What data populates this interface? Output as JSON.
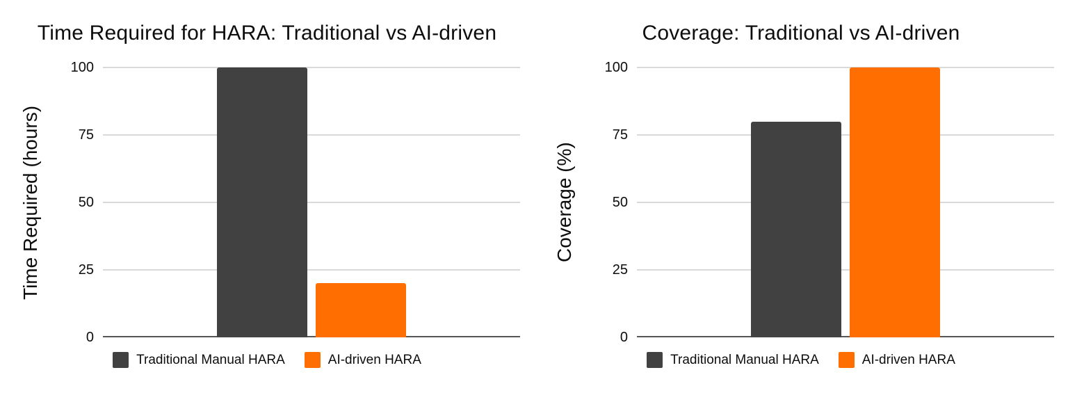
{
  "colors": {
    "background": "#ffffff",
    "gridline": "#d9d9d9",
    "axis_line": "#565656",
    "text": "#0d0d0d",
    "series_traditional": "#414141",
    "series_ai": "#ff6e01"
  },
  "chart_data": [
    {
      "type": "bar",
      "title": "Time Required for HARA: Traditional vs AI-driven",
      "ylabel": "Time Required (hours)",
      "xlabel": "",
      "ylim": [
        0,
        100
      ],
      "yticks": [
        0,
        25,
        50,
        75,
        100
      ],
      "grid": true,
      "legend_position": "bottom",
      "categories": [
        ""
      ],
      "series": [
        {
          "name": "Traditional Manual HARA",
          "color": "#414141",
          "values": [
            100
          ]
        },
        {
          "name": "AI-driven HARA",
          "color": "#ff6e01",
          "values": [
            20
          ]
        }
      ]
    },
    {
      "type": "bar",
      "title": "Coverage: Traditional vs AI-driven",
      "ylabel": "Coverage (%)",
      "xlabel": "",
      "ylim": [
        0,
        100
      ],
      "yticks": [
        0,
        25,
        50,
        75,
        100
      ],
      "grid": true,
      "legend_position": "bottom",
      "categories": [
        ""
      ],
      "series": [
        {
          "name": "Traditional Manual HARA",
          "color": "#414141",
          "values": [
            80
          ]
        },
        {
          "name": "AI-driven HARA",
          "color": "#ff6e01",
          "values": [
            100
          ]
        }
      ]
    }
  ]
}
